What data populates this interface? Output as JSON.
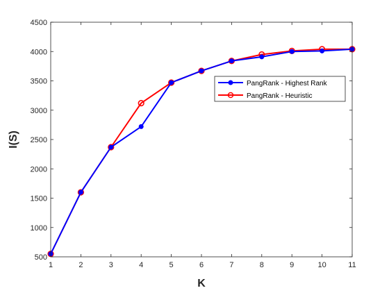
{
  "chart_data": {
    "type": "line",
    "title": "",
    "xlabel": "K",
    "ylabel": "I(S)",
    "x": [
      1,
      2,
      3,
      4,
      5,
      6,
      7,
      8,
      9,
      10,
      11
    ],
    "xlim": [
      1,
      11
    ],
    "ylim": [
      500,
      4500
    ],
    "xticks": [
      "1",
      "2",
      "3",
      "4",
      "5",
      "6",
      "7",
      "8",
      "9",
      "10",
      "11"
    ],
    "yticks": [
      "500",
      "1000",
      "1500",
      "2000",
      "2500",
      "3000",
      "3500",
      "4000",
      "4500"
    ],
    "grid": false,
    "legend_position": "top-right",
    "series": [
      {
        "name": "PangRank - Highest Rank",
        "color": "#0000ff",
        "marker": "filled-circle",
        "values": [
          550,
          1600,
          2370,
          2720,
          3470,
          3670,
          3840,
          3910,
          4000,
          4010,
          4040
        ]
      },
      {
        "name": "PangRank - Heuristic",
        "color": "#ff0000",
        "marker": "open-circle",
        "values": [
          550,
          1600,
          2370,
          3120,
          3470,
          3670,
          3840,
          3950,
          4010,
          4040,
          4040
        ]
      }
    ]
  }
}
